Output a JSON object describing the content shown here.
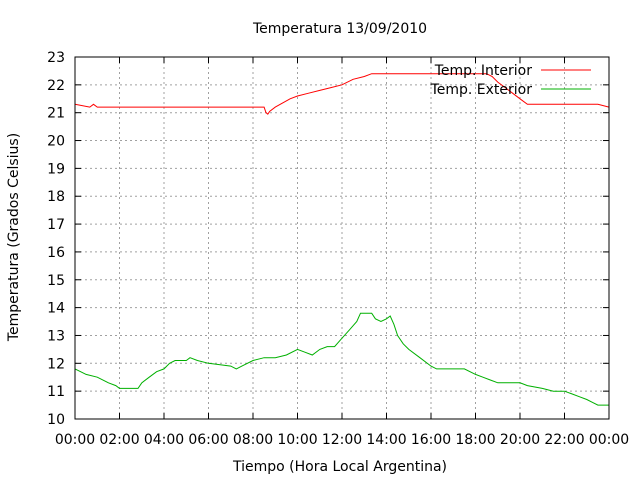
{
  "chart_data": {
    "type": "line",
    "title": "Temperatura 13/09/2010",
    "xlabel": "Tiempo (Hora Local Argentina)",
    "ylabel": "Temperatura (Grados Celsius)",
    "xlim": [
      "00:00",
      "24:00"
    ],
    "ylim": [
      10,
      23
    ],
    "x_tick_labels": [
      "00:00",
      "02:00",
      "04:00",
      "06:00",
      "08:00",
      "10:00",
      "12:00",
      "14:00",
      "16:00",
      "18:00",
      "20:00",
      "22:00",
      "00:00"
    ],
    "y_tick_labels": [
      "10",
      "11",
      "12",
      "13",
      "14",
      "15",
      "16",
      "17",
      "18",
      "19",
      "20",
      "21",
      "22",
      "23"
    ],
    "grid": true,
    "legend_position": "top-right",
    "series": [
      {
        "name": "Temp. Interior",
        "color": "#ff0000",
        "points": [
          [
            "00:00",
            21.3
          ],
          [
            "00:40",
            21.2
          ],
          [
            "00:50",
            21.3
          ],
          [
            "01:00",
            21.2
          ],
          [
            "08:30",
            21.2
          ],
          [
            "08:35",
            21.0
          ],
          [
            "08:40",
            20.95
          ],
          [
            "08:45",
            21.05
          ],
          [
            "09:00",
            21.2
          ],
          [
            "09:20",
            21.35
          ],
          [
            "09:40",
            21.5
          ],
          [
            "10:00",
            21.6
          ],
          [
            "10:30",
            21.7
          ],
          [
            "11:00",
            21.8
          ],
          [
            "11:30",
            21.9
          ],
          [
            "12:00",
            22.0
          ],
          [
            "12:30",
            22.2
          ],
          [
            "13:00",
            22.3
          ],
          [
            "13:20",
            22.4
          ],
          [
            "14:00",
            22.4
          ],
          [
            "18:30",
            22.4
          ],
          [
            "18:45",
            22.3
          ],
          [
            "19:00",
            22.1
          ],
          [
            "19:20",
            21.9
          ],
          [
            "19:40",
            21.7
          ],
          [
            "20:00",
            21.5
          ],
          [
            "20:20",
            21.3
          ],
          [
            "22:30",
            21.3
          ],
          [
            "23:30",
            21.3
          ],
          [
            "24:00",
            21.2
          ]
        ]
      },
      {
        "name": "Temp. Exterior",
        "color": "#00b000",
        "points": [
          [
            "00:00",
            11.8
          ],
          [
            "00:15",
            11.7
          ],
          [
            "00:30",
            11.6
          ],
          [
            "01:00",
            11.5
          ],
          [
            "01:30",
            11.3
          ],
          [
            "01:50",
            11.2
          ],
          [
            "02:00",
            11.1
          ],
          [
            "02:30",
            11.1
          ],
          [
            "02:50",
            11.1
          ],
          [
            "03:00",
            11.3
          ],
          [
            "03:20",
            11.5
          ],
          [
            "03:40",
            11.7
          ],
          [
            "04:00",
            11.8
          ],
          [
            "04:15",
            12.0
          ],
          [
            "04:30",
            12.1
          ],
          [
            "05:00",
            12.1
          ],
          [
            "05:10",
            12.2
          ],
          [
            "05:30",
            12.1
          ],
          [
            "06:00",
            12.0
          ],
          [
            "07:00",
            11.9
          ],
          [
            "07:15",
            11.8
          ],
          [
            "07:30",
            11.9
          ],
          [
            "08:00",
            12.1
          ],
          [
            "08:30",
            12.2
          ],
          [
            "09:00",
            12.2
          ],
          [
            "09:30",
            12.3
          ],
          [
            "10:00",
            12.5
          ],
          [
            "10:20",
            12.4
          ],
          [
            "10:40",
            12.3
          ],
          [
            "11:00",
            12.5
          ],
          [
            "11:20",
            12.6
          ],
          [
            "11:40",
            12.6
          ],
          [
            "12:00",
            12.9
          ],
          [
            "12:20",
            13.2
          ],
          [
            "12:40",
            13.5
          ],
          [
            "12:50",
            13.8
          ],
          [
            "13:00",
            13.8
          ],
          [
            "13:20",
            13.8
          ],
          [
            "13:30",
            13.6
          ],
          [
            "13:45",
            13.5
          ],
          [
            "14:00",
            13.6
          ],
          [
            "14:10",
            13.7
          ],
          [
            "14:20",
            13.4
          ],
          [
            "14:30",
            13.0
          ],
          [
            "14:45",
            12.7
          ],
          [
            "15:00",
            12.5
          ],
          [
            "15:30",
            12.2
          ],
          [
            "16:00",
            11.9
          ],
          [
            "16:15",
            11.8
          ],
          [
            "17:00",
            11.8
          ],
          [
            "17:30",
            11.8
          ],
          [
            "18:00",
            11.6
          ],
          [
            "18:20",
            11.5
          ],
          [
            "18:40",
            11.4
          ],
          [
            "19:00",
            11.3
          ],
          [
            "20:00",
            11.3
          ],
          [
            "20:20",
            11.2
          ],
          [
            "21:00",
            11.1
          ],
          [
            "21:30",
            11.0
          ],
          [
            "22:00",
            11.0
          ],
          [
            "22:20",
            10.9
          ],
          [
            "22:40",
            10.8
          ],
          [
            "23:00",
            10.7
          ],
          [
            "23:15",
            10.6
          ],
          [
            "23:30",
            10.5
          ],
          [
            "24:00",
            10.5
          ]
        ]
      }
    ]
  }
}
